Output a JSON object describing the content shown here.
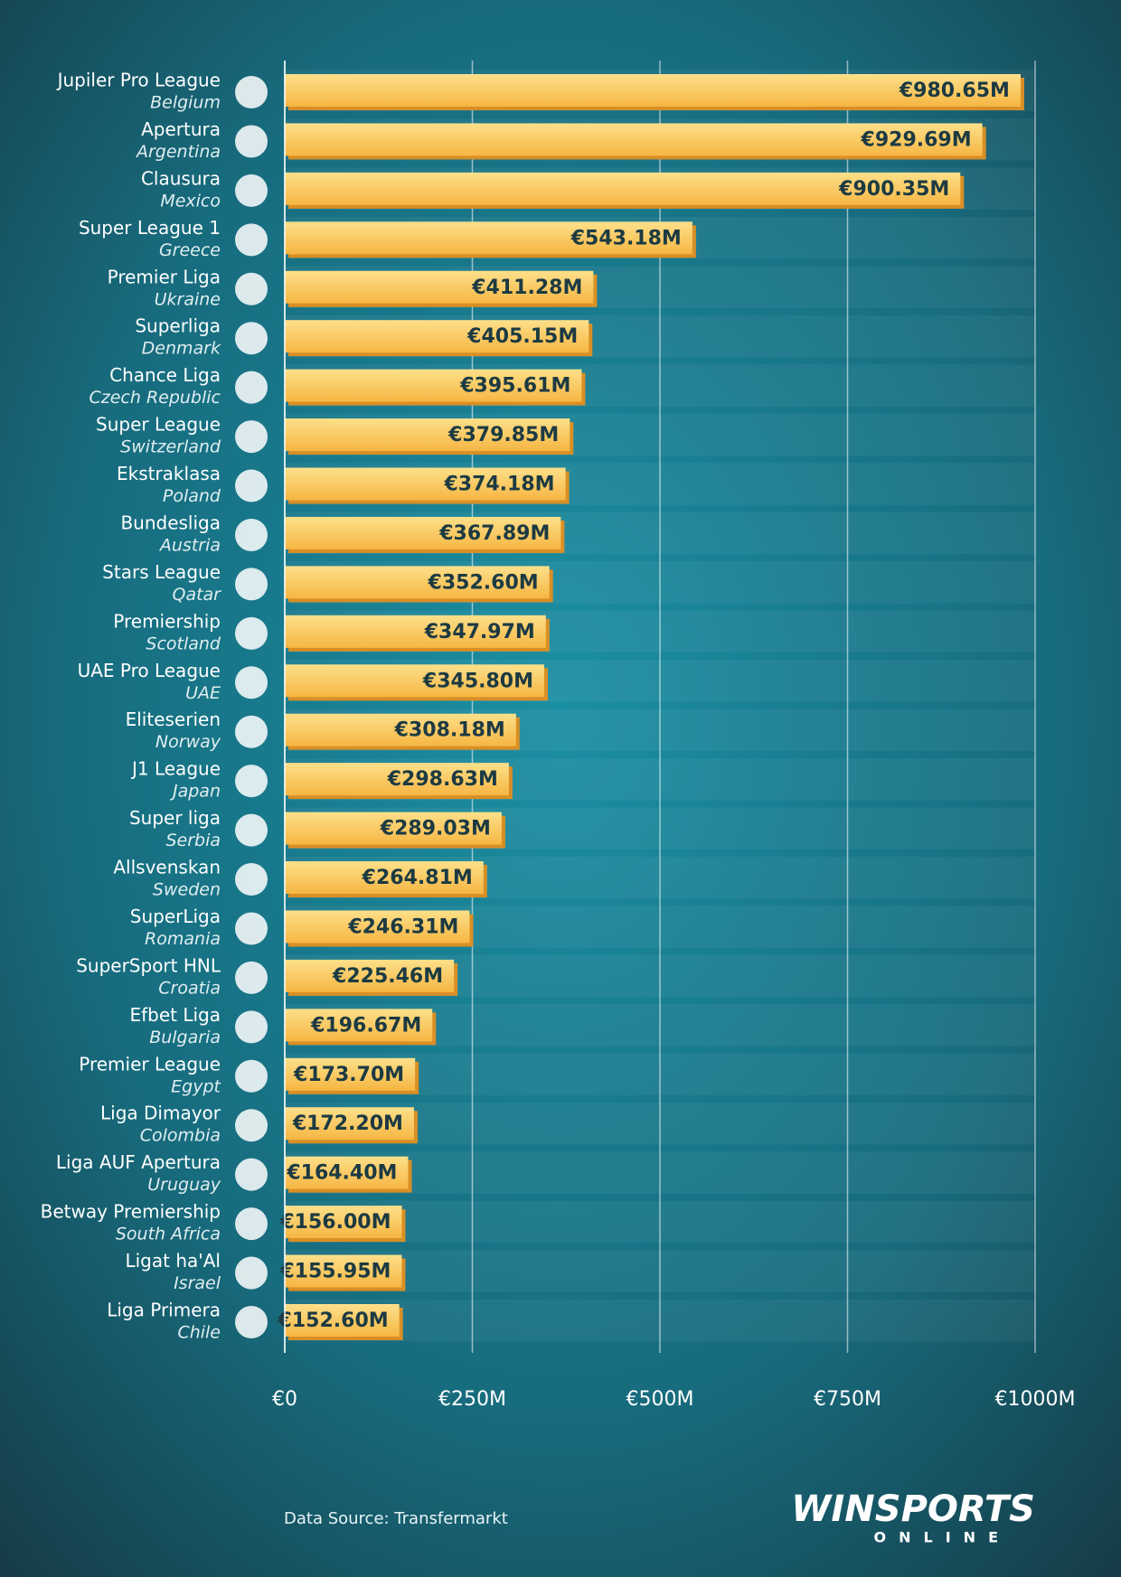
{
  "chart_data": {
    "type": "bar",
    "orientation": "horizontal",
    "categories": [
      "Jupiler Pro League",
      "Apertura",
      "Clausura",
      "Super League 1",
      "Premier Liga",
      "Superliga",
      "Chance Liga",
      "Super League",
      "Ekstraklasa",
      "Bundesliga",
      "Stars League",
      "Premiership",
      "UAE Pro League",
      "Eliteserien",
      "J1 League",
      "Super liga",
      "Allsvenskan",
      "SuperLiga",
      "SuperSport HNL",
      "Efbet Liga",
      "Premier League",
      "Liga Dimayor",
      "Liga AUF Apertura",
      "Betway Premiership",
      "Ligat ha'Al",
      "Liga Primera"
    ],
    "countries": [
      "Belgium",
      "Argentina",
      "Mexico",
      "Greece",
      "Ukraine",
      "Denmark",
      "Czech Republic",
      "Switzerland",
      "Poland",
      "Austria",
      "Qatar",
      "Scotland",
      "UAE",
      "Norway",
      "Japan",
      "Serbia",
      "Sweden",
      "Romania",
      "Croatia",
      "Bulgaria",
      "Egypt",
      "Colombia",
      "Uruguay",
      "South Africa",
      "Israel",
      "Chile"
    ],
    "values": [
      980.65,
      929.69,
      900.35,
      543.18,
      411.28,
      405.15,
      395.61,
      379.85,
      374.18,
      367.89,
      352.6,
      347.97,
      345.8,
      308.18,
      298.63,
      289.03,
      264.81,
      246.31,
      225.46,
      196.67,
      173.7,
      172.2,
      164.4,
      156.0,
      155.95,
      152.6
    ],
    "value_labels": [
      "€980.65M",
      "€929.69M",
      "€900.35M",
      "€543.18M",
      "€411.28M",
      "€405.15M",
      "€395.61M",
      "€379.85M",
      "€374.18M",
      "€367.89M",
      "€352.60M",
      "€347.97M",
      "€345.80M",
      "€308.18M",
      "€298.63M",
      "€289.03M",
      "€264.81M",
      "€246.31M",
      "€225.46M",
      "€196.67M",
      "€173.70M",
      "€172.20M",
      "€164.40M",
      "€156.00M",
      "€155.95M",
      "€152.60M"
    ],
    "color": "#f8c150",
    "xlim": [
      0,
      1000
    ],
    "xticks": [
      {
        "value": 0,
        "label": "€0"
      },
      {
        "value": 250,
        "label": "€250M"
      },
      {
        "value": 500,
        "label": "€500M"
      },
      {
        "value": 750,
        "label": "€750M"
      },
      {
        "value": 1000,
        "label": "€1000M"
      }
    ],
    "grid": true,
    "source": "Data Source: Transfermarkt",
    "brand": "WINSPORTS",
    "brand_sub": "ONLINE"
  }
}
